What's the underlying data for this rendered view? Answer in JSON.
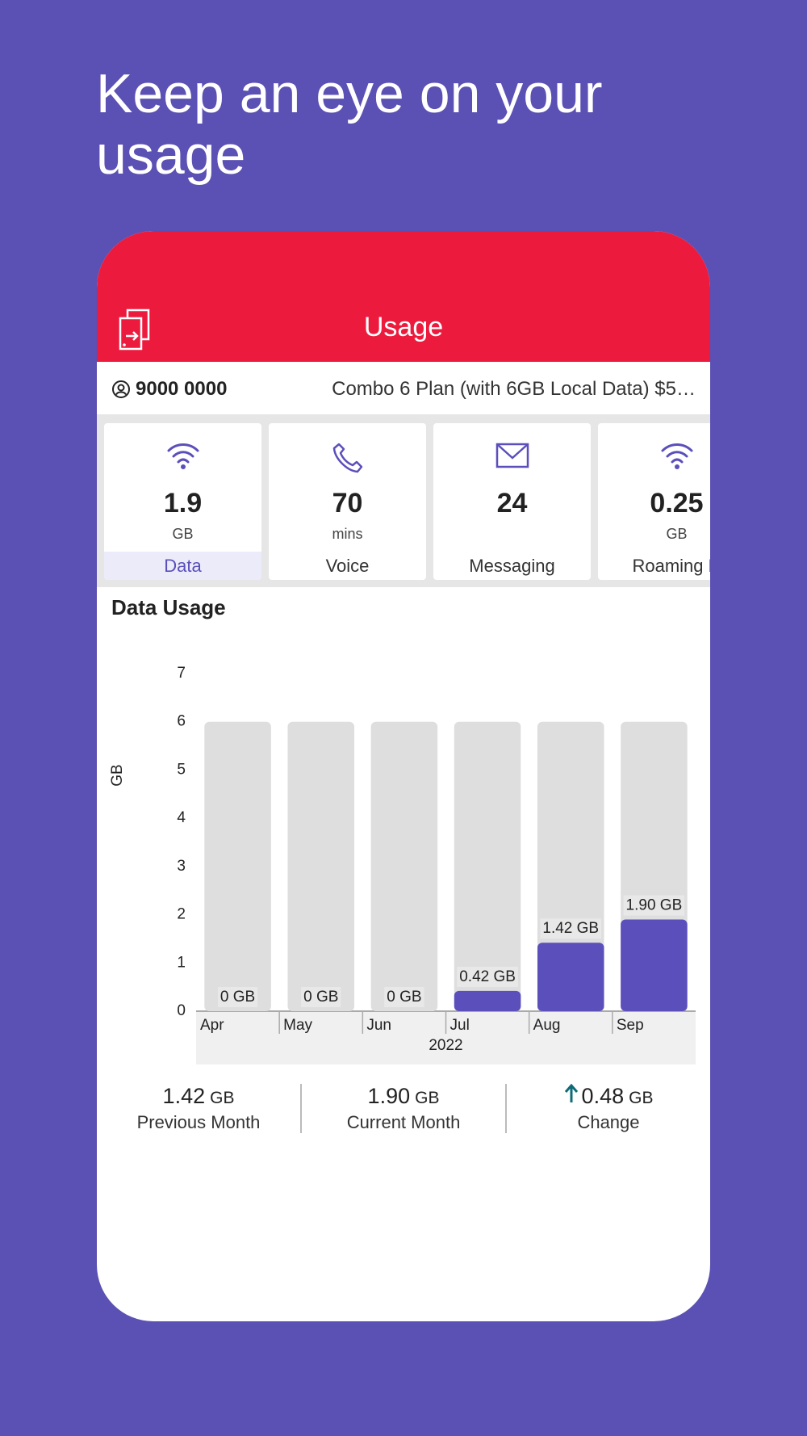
{
  "header": {
    "title": "Keep an eye on your usage"
  },
  "app": {
    "title": "Usage",
    "account": {
      "number": "9000 0000",
      "plan": "Combo 6 Plan (with 6GB Local Data) $5…"
    },
    "tiles": [
      {
        "value": "1.9",
        "unit": "GB",
        "label": "Data"
      },
      {
        "value": "70",
        "unit": "mins",
        "label": "Voice"
      },
      {
        "value": "24",
        "label": "Messaging"
      },
      {
        "value": "0.25",
        "unit": "GB",
        "label": "Roaming D"
      }
    ]
  },
  "chart_data": {
    "type": "bar",
    "title": "Data Usage",
    "y_label": "GB",
    "x_group_label": "2022",
    "categories": [
      "Apr",
      "May",
      "Jun",
      "Jul",
      "Aug",
      "Sep"
    ],
    "values": [
      0,
      0,
      0,
      0.42,
      1.42,
      1.9
    ],
    "value_labels": [
      "0 GB",
      "0 GB",
      "0 GB",
      "0.42 GB",
      "1.42 GB",
      "1.90 GB"
    ],
    "color": "#5b4fbb",
    "allowance": [
      6,
      6,
      6,
      6,
      6,
      6
    ],
    "allowance_color": "#dedede",
    "ylim": [
      0,
      7
    ],
    "yticks": [
      0,
      1,
      2,
      3,
      4,
      5,
      6,
      7
    ]
  },
  "summary": [
    {
      "value": "1.42",
      "unit": "GB",
      "label": "Previous Month"
    },
    {
      "value": "1.90",
      "unit": "GB",
      "label": "Current Month"
    },
    {
      "value": "0.48",
      "unit": "GB",
      "label": "Change"
    }
  ]
}
